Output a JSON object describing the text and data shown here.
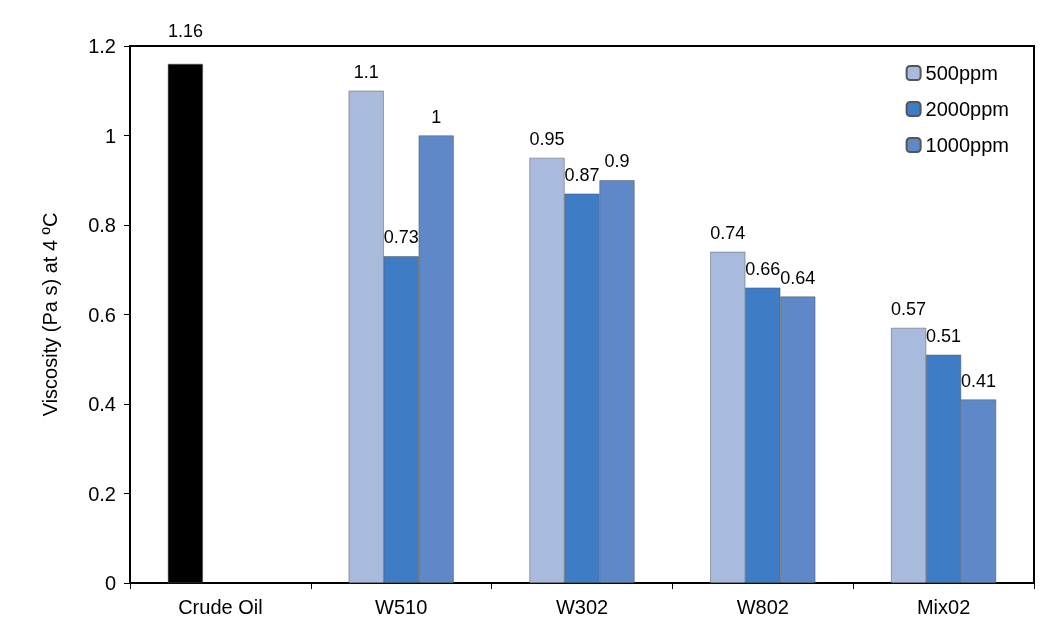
{
  "chart_data": {
    "type": "bar",
    "ylabel": "Viscosity (Pa s) at 4 ºC",
    "categories": [
      "Crude Oil",
      "W510",
      "W302",
      "W802",
      "Mix02"
    ],
    "series": [
      {
        "name": "500ppm",
        "color": "#a9bbdd",
        "colors": [
          "#000000",
          "#a9bbdd",
          "#a9bbdd",
          "#a9bbdd",
          "#a9bbdd"
        ],
        "values": [
          1.16,
          1.1,
          0.95,
          0.74,
          0.57
        ]
      },
      {
        "name": "2000ppm",
        "color": "#3f7cc6",
        "values": [
          null,
          0.73,
          0.87,
          0.66,
          0.51
        ]
      },
      {
        "name": "1000ppm",
        "color": "#5f88c8",
        "values": [
          null,
          1,
          0.9,
          0.64,
          0.41
        ]
      }
    ],
    "ylim": [
      0,
      1.2
    ],
    "yticks": [
      0,
      0.2,
      0.4,
      0.6,
      0.8,
      1,
      1.2
    ],
    "grid": false,
    "legend": "top right",
    "data_labels": true
  }
}
